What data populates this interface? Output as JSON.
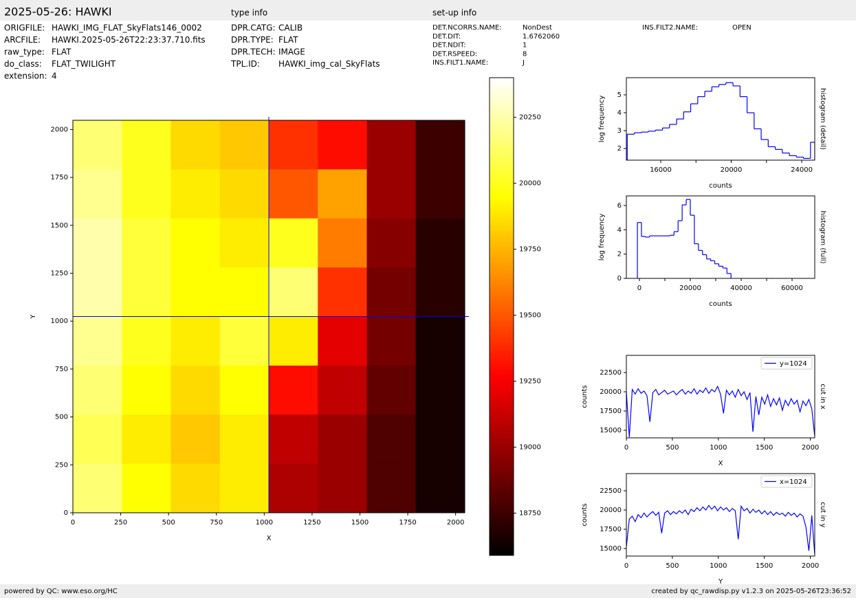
{
  "header": {
    "title": "2025-05-26: HAWKI",
    "type_info_title": "type info",
    "setup_info_title": "set-up info"
  },
  "file_info": [
    {
      "label": "ORIGFILE:",
      "value": "HAWKI_IMG_FLAT_SkyFlats146_0002"
    },
    {
      "label": "ARCFILE:",
      "value": "HAWKI.2025-05-26T22:23:37.710.fits"
    },
    {
      "label": "raw_type:",
      "value": "FLAT"
    },
    {
      "label": "do_class:",
      "value": "FLAT_TWILIGHT"
    },
    {
      "label": "extension:",
      "value": "4"
    }
  ],
  "type_info": [
    {
      "label": "DPR.CATG:",
      "value": "CALIB"
    },
    {
      "label": "DPR.TYPE:",
      "value": "FLAT"
    },
    {
      "label": "DPR.TECH:",
      "value": "IMAGE"
    },
    {
      "label": "TPL.ID:",
      "value": "HAWKI_img_cal_SkyFlats"
    }
  ],
  "setup_info": [
    {
      "label": "DET.NCORRS.NAME:",
      "value": "NonDest"
    },
    {
      "label": "DET.DIT:",
      "value": "1.6762060"
    },
    {
      "label": "DET.NDIT:",
      "value": "1"
    },
    {
      "label": "DET.RSPEED:",
      "value": "8"
    },
    {
      "label": "INS.FILT1.NAME:",
      "value": "J"
    }
  ],
  "setup_info_extra": [
    {
      "label": "INS.FILT2.NAME:",
      "value": "OPEN"
    }
  ],
  "footer": {
    "left": "powered by QC: www.eso.org/HC",
    "right": "created by qc_rawdisp.py v1.2.3 on 2025-05-26T23:36:52"
  },
  "chart_data": [
    {
      "type": "heatmap",
      "xlabel": "X",
      "ylabel": "Y",
      "xlim": [
        0,
        2048
      ],
      "ylim": [
        0,
        2048
      ],
      "xticks": [
        0,
        250,
        500,
        750,
        1000,
        1250,
        1500,
        1750,
        2000
      ],
      "yticks": [
        0,
        250,
        500,
        750,
        1000,
        1250,
        1500,
        1750,
        2000
      ],
      "z": [
        [
          20150,
          20000,
          19850,
          19800,
          19400,
          19300,
          19000,
          18750
        ],
        [
          20200,
          20000,
          19900,
          19850,
          19500,
          19700,
          19000,
          18750
        ],
        [
          20250,
          20050,
          19950,
          19900,
          20000,
          19600,
          18950,
          18700
        ],
        [
          20250,
          20050,
          19950,
          19950,
          20150,
          19400,
          18900,
          18700
        ],
        [
          20200,
          20000,
          19900,
          20050,
          19900,
          19200,
          18900,
          18650
        ],
        [
          20150,
          19950,
          19850,
          19950,
          19300,
          19100,
          18850,
          18650
        ],
        [
          20100,
          19900,
          19800,
          19900,
          19100,
          19000,
          18800,
          18650
        ],
        [
          20150,
          19950,
          19850,
          19900,
          19050,
          19000,
          18800,
          18650
        ]
      ],
      "colormap": [
        "#000000",
        "#550000",
        "#aa0000",
        "#ff0000",
        "#ff5500",
        "#ffaa00",
        "#ffff00",
        "#ffff80",
        "#ffffff"
      ],
      "crosshair": {
        "x": 1024,
        "y": 1024,
        "color": "#0000ff"
      },
      "colorbar": {
        "clim": [
          18590,
          20400
        ],
        "ticks": [
          18750,
          19000,
          19250,
          19500,
          19750,
          20000,
          20250
        ]
      }
    },
    {
      "type": "histogram",
      "side_label": "histogram (detail)",
      "xlabel": "counts",
      "ylabel": "log frequency",
      "color": "#0000ff",
      "xlim": [
        14050,
        24740
      ],
      "ylim": [
        1.35,
        5.96
      ],
      "xticks": [
        16000,
        20000,
        24000
      ],
      "xticks_minor": [
        18000,
        22000
      ],
      "yticks": [
        2,
        3,
        4,
        5
      ],
      "bins": [
        14100,
        14500,
        14900,
        15300,
        15700,
        16100,
        16500,
        16900,
        17300,
        17700,
        18100,
        18500,
        18900,
        19300,
        19700,
        20100,
        20500,
        20900,
        21300,
        21700,
        22100,
        22500,
        22900,
        23300,
        23700,
        24100,
        24500,
        24740
      ],
      "values": [
        2.8,
        2.88,
        2.92,
        2.97,
        3.03,
        3.15,
        3.35,
        3.65,
        4.05,
        4.5,
        4.9,
        5.2,
        5.45,
        5.58,
        5.68,
        5.5,
        4.9,
        4.0,
        3.1,
        2.5,
        2.1,
        1.95,
        1.75,
        1.6,
        1.52,
        1.45,
        2.35
      ]
    },
    {
      "type": "histogram",
      "side_label": "histogram (full)",
      "xlabel": "counts",
      "ylabel": "log frequency",
      "color": "#0000ff",
      "xlim": [
        -5135,
        68920
      ],
      "ylim": [
        0,
        6.79
      ],
      "xticks": [
        0,
        20000,
        40000,
        60000
      ],
      "xticks_minor": [
        10000,
        30000,
        50000
      ],
      "yticks": [
        0,
        2,
        4,
        6
      ],
      "bins": [
        -800,
        800,
        2400,
        4000,
        5600,
        7200,
        8800,
        10400,
        12000,
        13600,
        15200,
        16800,
        18400,
        20000,
        21600,
        23200,
        24800,
        26400,
        28000,
        29600,
        31200,
        32800,
        34400,
        36000
      ],
      "values": [
        4.6,
        3.45,
        3.4,
        3.5,
        3.5,
        3.5,
        3.5,
        3.5,
        3.55,
        3.85,
        4.75,
        6.05,
        6.5,
        5.2,
        2.85,
        2.3,
        1.95,
        1.6,
        1.45,
        1.2,
        1.0,
        0.85,
        0.4
      ]
    },
    {
      "type": "line",
      "side_label": "cut in x",
      "xlabel": "X",
      "ylabel": "counts",
      "xlim": [
        0,
        2048
      ],
      "ylim": [
        14020,
        24730
      ],
      "xticks": [
        0,
        500,
        1000,
        1500,
        2000
      ],
      "yticks": [
        15000,
        17500,
        20000,
        22500
      ],
      "x": [
        0,
        32,
        64,
        96,
        128,
        160,
        192,
        224,
        256,
        288,
        320,
        352,
        384,
        416,
        448,
        480,
        512,
        544,
        576,
        608,
        640,
        672,
        704,
        736,
        768,
        800,
        832,
        864,
        896,
        928,
        960,
        992,
        1024,
        1056,
        1088,
        1120,
        1152,
        1184,
        1216,
        1248,
        1280,
        1312,
        1344,
        1376,
        1408,
        1440,
        1472,
        1504,
        1536,
        1568,
        1600,
        1632,
        1664,
        1696,
        1728,
        1760,
        1792,
        1824,
        1856,
        1888,
        1920,
        1952,
        1984,
        2016,
        2047
      ],
      "series": [
        {
          "name": "y=1024",
          "color": "#0000ff",
          "values": [
            20000,
            14100,
            20300,
            19700,
            20400,
            19800,
            20100,
            19500,
            16100,
            19900,
            20300,
            19600,
            19900,
            20200,
            19700,
            19900,
            20100,
            19600,
            20000,
            20300,
            19700,
            20100,
            19800,
            20400,
            19700,
            20200,
            19900,
            20500,
            19800,
            20300,
            20000,
            20700,
            19700,
            17200,
            20200,
            19600,
            20100,
            19300,
            20300,
            19500,
            20000,
            19000,
            19900,
            14800,
            19400,
            17000,
            19300,
            18400,
            19600,
            18100,
            19100,
            18300,
            19200,
            17600,
            18900,
            18200,
            19100,
            18400,
            18900,
            17400,
            18800,
            18200,
            19000,
            17800,
            14300
          ]
        }
      ]
    },
    {
      "type": "line",
      "side_label": "cut in y",
      "xlabel": "Y",
      "ylabel": "counts",
      "xlim": [
        0,
        2048
      ],
      "ylim": [
        14020,
        24730
      ],
      "xticks": [
        0,
        500,
        1000,
        1500,
        2000
      ],
      "yticks": [
        15000,
        17500,
        20000,
        22500
      ],
      "x": [
        0,
        32,
        64,
        96,
        128,
        160,
        192,
        224,
        256,
        288,
        320,
        352,
        384,
        416,
        448,
        480,
        512,
        544,
        576,
        608,
        640,
        672,
        704,
        736,
        768,
        800,
        832,
        864,
        896,
        928,
        960,
        992,
        1024,
        1056,
        1088,
        1120,
        1152,
        1184,
        1216,
        1248,
        1280,
        1312,
        1344,
        1376,
        1408,
        1440,
        1472,
        1504,
        1536,
        1568,
        1600,
        1632,
        1664,
        1696,
        1728,
        1760,
        1792,
        1824,
        1856,
        1888,
        1920,
        1952,
        1984,
        2016,
        2047
      ],
      "series": [
        {
          "name": "x=1024",
          "color": "#0000ff",
          "values": [
            15200,
            18800,
            19200,
            18500,
            19400,
            19000,
            19600,
            19100,
            19500,
            19800,
            19300,
            19700,
            17000,
            19600,
            19900,
            19400,
            19800,
            19500,
            19900,
            19600,
            20000,
            19400,
            20100,
            19800,
            20300,
            19900,
            20400,
            20000,
            20600,
            20100,
            20500,
            19900,
            20400,
            20000,
            20300,
            19800,
            20200,
            19900,
            16200,
            20500,
            19900,
            20200,
            19600,
            20100,
            19700,
            20000,
            19500,
            19900,
            19400,
            19800,
            19300,
            19700,
            19400,
            19600,
            19200,
            19700,
            19300,
            19600,
            19100,
            19500,
            19200,
            17800,
            14700,
            19300,
            14300
          ]
        }
      ]
    }
  ]
}
